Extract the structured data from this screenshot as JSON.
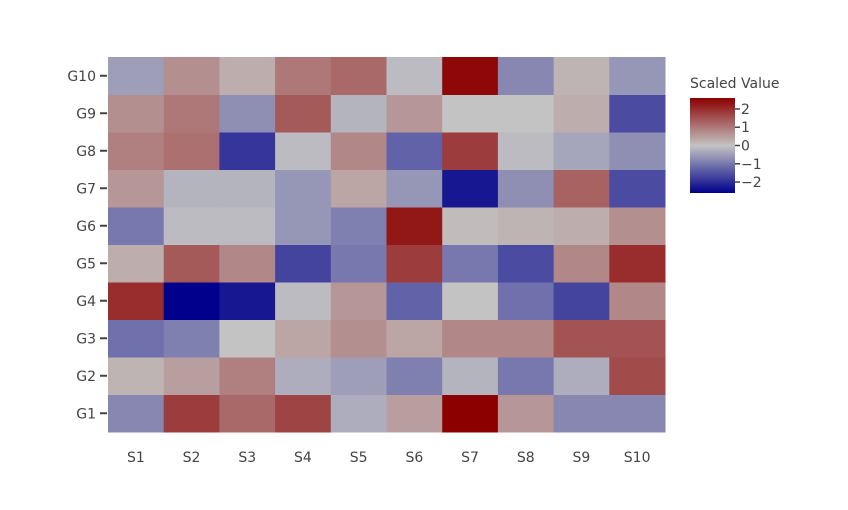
{
  "chart_data": {
    "type": "heatmap",
    "title": "",
    "xlabel": "",
    "ylabel": "",
    "x_categories": [
      "S1",
      "S2",
      "S3",
      "S4",
      "S5",
      "S6",
      "S7",
      "S8",
      "S9",
      "S10"
    ],
    "y_categories": [
      "G1",
      "G2",
      "G3",
      "G4",
      "G5",
      "G6",
      "G7",
      "G8",
      "G9",
      "G10"
    ],
    "z": [
      [
        -0.8,
        1.8,
        1.2,
        1.7,
        -0.3,
        0.5,
        2.6,
        0.6,
        -0.8,
        -0.8
      ],
      [
        0.2,
        0.5,
        0.9,
        -0.3,
        -0.5,
        -0.9,
        -0.2,
        -1.0,
        -0.3,
        1.6
      ],
      [
        -1.1,
        -0.9,
        0.0,
        0.4,
        0.7,
        0.4,
        0.8,
        0.8,
        1.5,
        1.5
      ],
      [
        2.0,
        -2.6,
        -2.3,
        -0.1,
        0.6,
        -1.3,
        0.0,
        -1.1,
        -1.7,
        0.8
      ],
      [
        0.3,
        1.4,
        0.8,
        -1.7,
        -1.0,
        1.8,
        -1.0,
        -1.6,
        0.8,
        2.0
      ],
      [
        -1.0,
        -0.1,
        -0.1,
        -0.6,
        -0.9,
        2.3,
        0.1,
        0.2,
        0.3,
        0.7
      ],
      [
        0.6,
        -0.2,
        -0.2,
        -0.6,
        0.4,
        -0.6,
        -2.3,
        -0.7,
        1.3,
        -1.6
      ],
      [
        0.9,
        1.1,
        -1.9,
        -0.1,
        0.8,
        -1.3,
        1.8,
        -0.1,
        -0.4,
        -0.7
      ],
      [
        0.7,
        1.0,
        -0.7,
        1.4,
        -0.2,
        0.6,
        0.0,
        0.0,
        0.3,
        -1.6
      ],
      [
        -0.5,
        0.7,
        0.3,
        1.0,
        1.2,
        -0.1,
        2.5,
        -0.8,
        0.2,
        -0.6
      ]
    ],
    "colorscale": [
      [
        0.0,
        "#00008c"
      ],
      [
        0.5,
        "#c3c3c3"
      ],
      [
        1.0,
        "#8c0000"
      ]
    ],
    "zmin": -2.6,
    "zmax": 2.6,
    "colorbar": {
      "title": "Scaled Value",
      "tickvals": [
        2,
        1,
        0,
        -1,
        -2
      ],
      "ticktext": [
        "2",
        "1",
        "0",
        "−1",
        "−2"
      ]
    },
    "grid": false,
    "legend_placement": "right"
  }
}
